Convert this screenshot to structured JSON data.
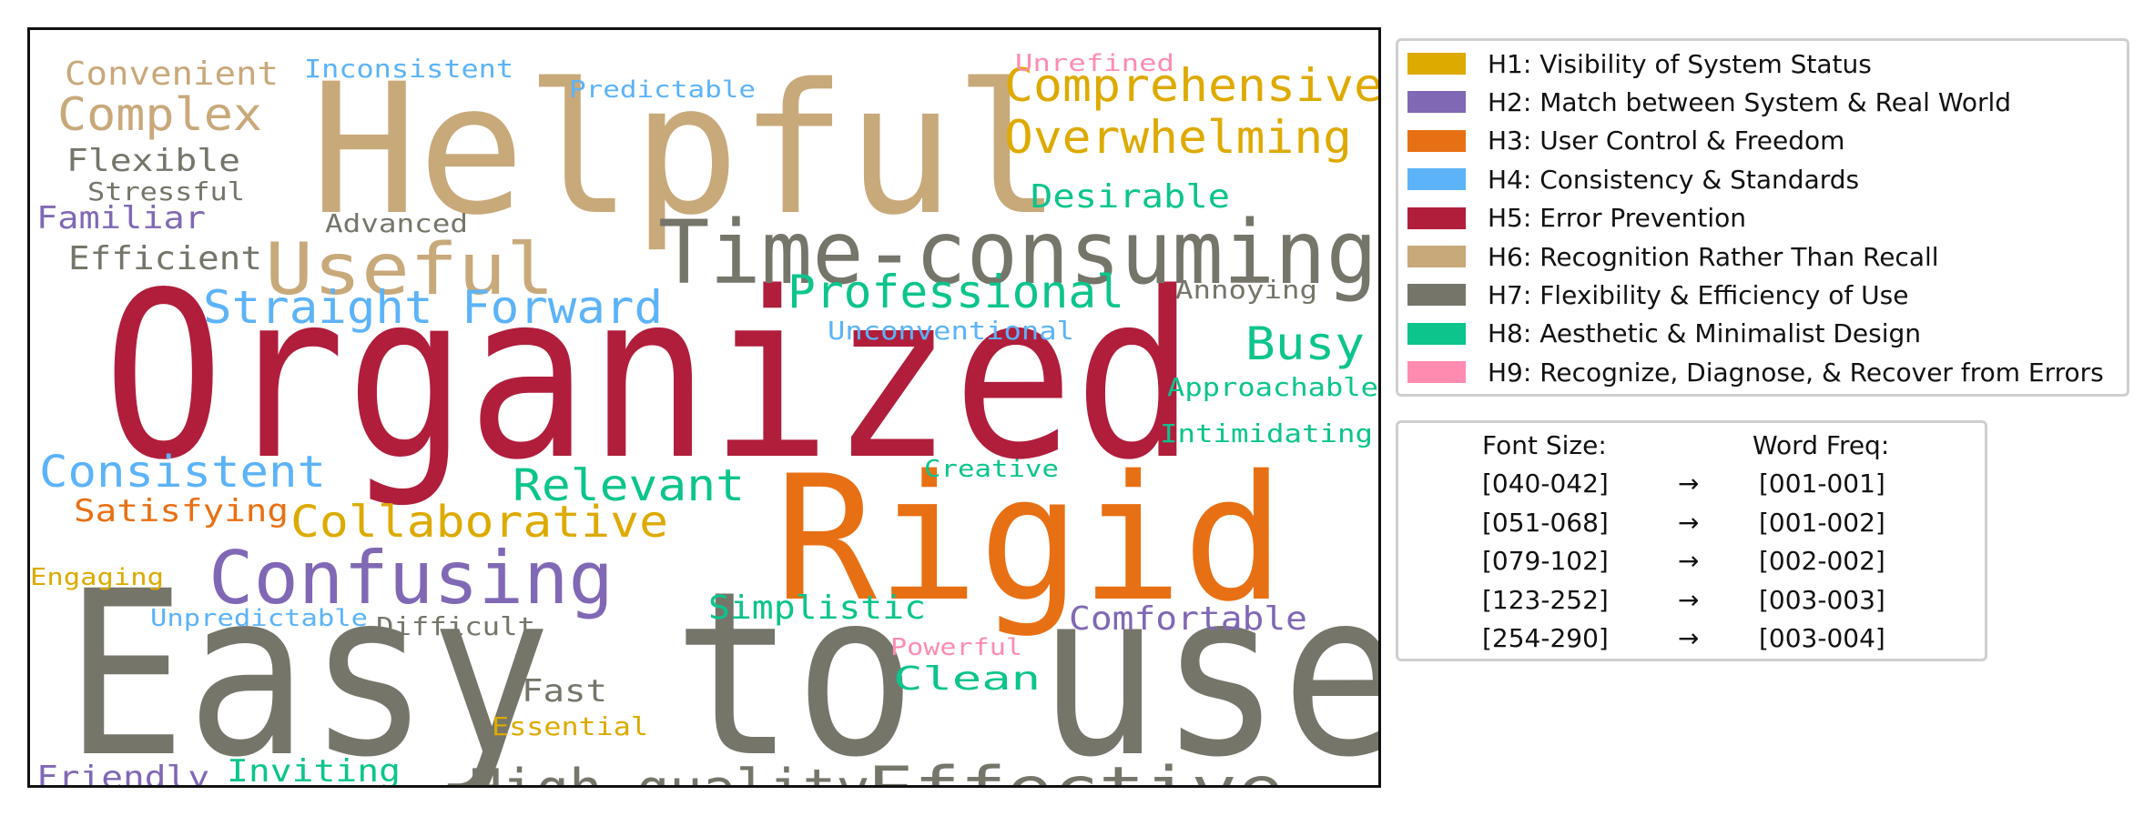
{
  "chart_data": {
    "type": "wordcloud",
    "categories": [
      {
        "id": "H1",
        "label": "H1: Visibility of System Status",
        "color": "#DDAA00"
      },
      {
        "id": "H2",
        "label": "H2: Match between System & Real World",
        "color": "#8068B5"
      },
      {
        "id": "H3",
        "label": "H3: User Control & Freedom",
        "color": "#E87014"
      },
      {
        "id": "H4",
        "label": "H4: Consistency & Standards",
        "color": "#5CB3F8"
      },
      {
        "id": "H5",
        "label": "H5: Error Prevention",
        "color": "#B01E3C"
      },
      {
        "id": "H6",
        "label": "H6: Recognition Rather Than Recall",
        "color": "#C8A97A"
      },
      {
        "id": "H7",
        "label": "H7: Flexibility & Efficiency of Use",
        "color": "#75756A"
      },
      {
        "id": "H8",
        "label": "H8: Aesthetic & Minimalist Design",
        "color": "#0CC48C"
      },
      {
        "id": "H9",
        "label": "H9: Recognize, Diagnose, & Recover from Errors",
        "color": "#FF8CB0"
      }
    ],
    "words": [
      {
        "text": "Easy to use",
        "category": "H7"
      },
      {
        "text": "Organized",
        "category": "H5"
      },
      {
        "text": "Helpful",
        "category": "H6"
      },
      {
        "text": "Rigid",
        "category": "H3"
      },
      {
        "text": "Time-consuming",
        "category": "H7"
      },
      {
        "text": "Useful",
        "category": "H6"
      },
      {
        "text": "Confusing",
        "category": "H2"
      },
      {
        "text": "Effective",
        "category": "H7"
      },
      {
        "text": "Comprehensive",
        "category": "H1"
      },
      {
        "text": "Overwhelming",
        "category": "H1"
      },
      {
        "text": "Complex",
        "category": "H6"
      },
      {
        "text": "Professional",
        "category": "H8"
      },
      {
        "text": "High quality",
        "category": "H7"
      },
      {
        "text": "Straight Forward",
        "category": "H4"
      },
      {
        "text": "Collaborative",
        "category": "H1"
      },
      {
        "text": "Relevant",
        "category": "H8"
      },
      {
        "text": "Consistent",
        "category": "H4"
      },
      {
        "text": "Busy",
        "category": "H8"
      },
      {
        "text": "Convenient",
        "category": "H6"
      },
      {
        "text": "Flexible",
        "category": "H7"
      },
      {
        "text": "Efficient",
        "category": "H7"
      },
      {
        "text": "Desirable",
        "category": "H8"
      },
      {
        "text": "Comfortable",
        "category": "H2"
      },
      {
        "text": "Simplistic",
        "category": "H8"
      },
      {
        "text": "Satisfying",
        "category": "H3"
      },
      {
        "text": "Clean",
        "category": "H8"
      },
      {
        "text": "Familiar",
        "category": "H2"
      },
      {
        "text": "Fast",
        "category": "H7"
      },
      {
        "text": "Friendly",
        "category": "H2"
      },
      {
        "text": "Inviting",
        "category": "H8"
      },
      {
        "text": "Inconsistent",
        "category": "H4"
      },
      {
        "text": "Stressful",
        "category": "H7"
      },
      {
        "text": "Advanced",
        "category": "H7"
      },
      {
        "text": "Annoying",
        "category": "H7"
      },
      {
        "text": "Unconventional",
        "category": "H4"
      },
      {
        "text": "Approachable",
        "category": "H8"
      },
      {
        "text": "Intimidating",
        "category": "H8"
      },
      {
        "text": "Creative",
        "category": "H8"
      },
      {
        "text": "Predictable",
        "category": "H4"
      },
      {
        "text": "Unrefined",
        "category": "H9"
      },
      {
        "text": "Engaging",
        "category": "H1"
      },
      {
        "text": "Unpredictable",
        "category": "H4"
      },
      {
        "text": "Difficult",
        "category": "H7"
      },
      {
        "text": "Powerful",
        "category": "H9"
      },
      {
        "text": "Essential",
        "category": "H1"
      }
    ],
    "size_legend": {
      "header_font": "Font Size:",
      "header_freq": "Word Freq:",
      "arrow": "→",
      "rows": [
        {
          "font_size": "[040-042]",
          "word_freq": "[001-001]"
        },
        {
          "font_size": "[051-068]",
          "word_freq": "[001-002]"
        },
        {
          "font_size": "[079-102]",
          "word_freq": "[002-002]"
        },
        {
          "font_size": "[123-252]",
          "word_freq": "[003-003]"
        },
        {
          "font_size": "[254-290]",
          "word_freq": "[003-004]"
        }
      ]
    }
  }
}
